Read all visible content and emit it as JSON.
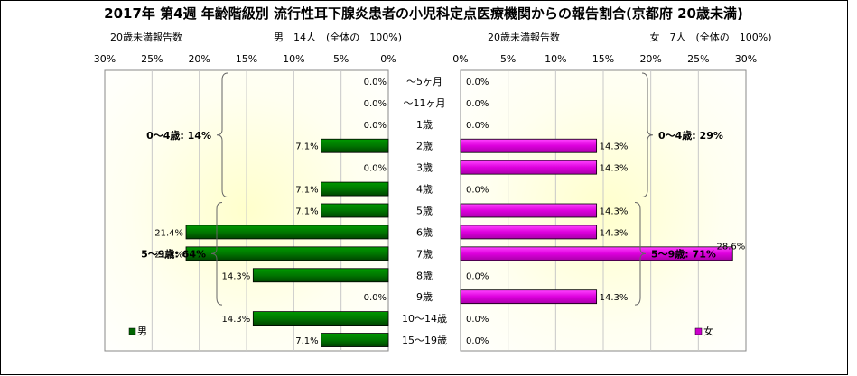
{
  "chart_data": {
    "type": "bar",
    "title": "2017年 第4週 年齢階級別 流行性耳下腺炎患者の小児科定点医療機関からの報告割合(京都府 20歳未満)",
    "categories": [
      "～5ヶ月",
      "～11ヶ月",
      "1歳",
      "2歳",
      "3歳",
      "4歳",
      "5歳",
      "6歳",
      "7歳",
      "8歳",
      "9歳",
      "10～14歳",
      "15～19歳"
    ],
    "unit": "%",
    "xlim": [
      0,
      30
    ],
    "ticks": [
      "0%",
      "5%",
      "10%",
      "15%",
      "20%",
      "25%",
      "30%"
    ],
    "series": [
      {
        "name": "男",
        "axis_caption": "20歳未満報告数",
        "header": "男　14人　(全体の　100%)",
        "values": [
          0.0,
          0.0,
          0.0,
          7.1,
          0.0,
          7.1,
          7.1,
          21.4,
          21.4,
          14.3,
          0.0,
          14.3,
          7.1
        ],
        "labels": [
          "0.0%",
          "0.0%",
          "0.0%",
          "7.1%",
          "0.0%",
          "7.1%",
          "7.1%",
          "21.4%",
          "21.4%",
          "14.3%",
          "0.0%",
          "14.3%",
          "7.1%"
        ],
        "groups": [
          {
            "label": "0～4歳: 14%",
            "from": 0,
            "to": 5
          },
          {
            "label": "5～9歳: 64%",
            "from": 6,
            "to": 10
          }
        ],
        "legend": "男",
        "color": "#006600"
      },
      {
        "name": "女",
        "axis_caption": "20歳未満報告数",
        "header": "女　7人　(全体の　100%)",
        "values": [
          0.0,
          0.0,
          0.0,
          14.3,
          14.3,
          0.0,
          14.3,
          14.3,
          28.6,
          0.0,
          14.3,
          0.0,
          0.0
        ],
        "labels": [
          "0.0%",
          "0.0%",
          "0.0%",
          "14.3%",
          "14.3%",
          "0.0%",
          "14.3%",
          "14.3%",
          "28.6%",
          "0.0%",
          "14.3%",
          "0.0%",
          "0.0%"
        ],
        "groups": [
          {
            "label": "0～4歳: 29%",
            "from": 0,
            "to": 5
          },
          {
            "label": "5～9歳: 71%",
            "from": 6,
            "to": 10
          }
        ],
        "legend": "女",
        "color": "#cc00cc"
      }
    ],
    "grid": true
  }
}
